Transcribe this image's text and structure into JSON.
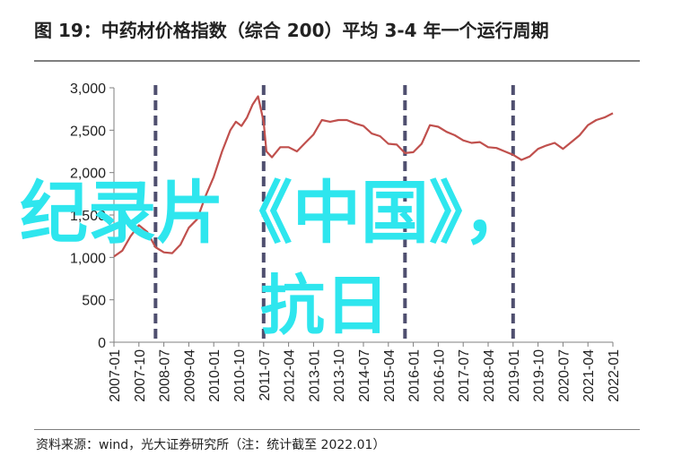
{
  "title": "图 19：中药材价格指数（综合 200）平均 3-4 年一个运行周期",
  "source": "资料来源：wind，光大证券研究所（注：统计截至 2022.01）",
  "watermark": {
    "line1": "纪录片《中国》，",
    "line2": "抗日"
  },
  "colors": {
    "series": "#c0504d",
    "cycle_lines": "#4f4f6f",
    "watermark": "#2ee6ee",
    "axis": "#7f7f7f"
  },
  "chart_data": {
    "type": "line",
    "title": "",
    "xlabel": "",
    "ylabel": "",
    "ylim": [
      0,
      3000
    ],
    "yticks": [
      0,
      500,
      1000,
      1500,
      2000,
      2500,
      3000
    ],
    "ytick_labels": [
      "0",
      "500",
      "1,000",
      "1,500",
      "2,000",
      "2,500",
      "3,000"
    ],
    "xlim": [
      "2007-01",
      "2022-01"
    ],
    "xtick_labels": [
      "2007-01",
      "2007-10",
      "2008-07",
      "2009-04",
      "2010-01",
      "2010-10",
      "2011-07",
      "2012-04",
      "2013-01",
      "2013-10",
      "2014-07",
      "2015-04",
      "2016-01",
      "2016-10",
      "2017-07",
      "2018-04",
      "2019-01",
      "2019-10",
      "2020-07",
      "2021-04",
      "2022-01"
    ],
    "grid": false,
    "cycle_markers": [
      "2008-04",
      "2011-07",
      "2015-10",
      "2019-01"
    ],
    "series": [
      {
        "x": [
          "2007-01",
          "2007-04",
          "2007-07",
          "2007-10",
          "2008-01",
          "2008-04",
          "2008-07",
          "2008-10",
          "2009-01",
          "2009-04",
          "2009-07",
          "2009-10",
          "2010-01",
          "2010-04",
          "2010-07",
          "2010-09",
          "2010-11",
          "2011-01",
          "2011-03",
          "2011-05",
          "2011-07",
          "2011-08",
          "2011-10",
          "2012-01",
          "2012-04",
          "2012-07",
          "2012-10",
          "2013-01",
          "2013-04",
          "2013-07",
          "2013-10",
          "2014-01",
          "2014-04",
          "2014-07",
          "2014-10",
          "2015-01",
          "2015-04",
          "2015-07",
          "2015-10",
          "2016-01",
          "2016-04",
          "2016-07",
          "2016-10",
          "2017-01",
          "2017-04",
          "2017-07",
          "2017-10",
          "2018-01",
          "2018-04",
          "2018-07",
          "2018-10",
          "2019-01",
          "2019-04",
          "2019-07",
          "2019-10",
          "2020-01",
          "2020-04",
          "2020-07",
          "2020-10",
          "2021-01",
          "2021-04",
          "2021-07",
          "2021-10",
          "2022-01"
        ],
        "values": [
          1010,
          1080,
          1250,
          1380,
          1300,
          1120,
          1060,
          1050,
          1150,
          1350,
          1450,
          1720,
          1950,
          2250,
          2500,
          2600,
          2550,
          2650,
          2800,
          2900,
          2600,
          2250,
          2180,
          2300,
          2300,
          2250,
          2350,
          2450,
          2620,
          2600,
          2620,
          2620,
          2580,
          2550,
          2460,
          2430,
          2340,
          2330,
          2230,
          2240,
          2340,
          2560,
          2540,
          2480,
          2440,
          2380,
          2350,
          2360,
          2300,
          2290,
          2250,
          2210,
          2150,
          2190,
          2280,
          2320,
          2350,
          2280,
          2360,
          2440,
          2560,
          2620,
          2650,
          2700
        ]
      }
    ]
  }
}
